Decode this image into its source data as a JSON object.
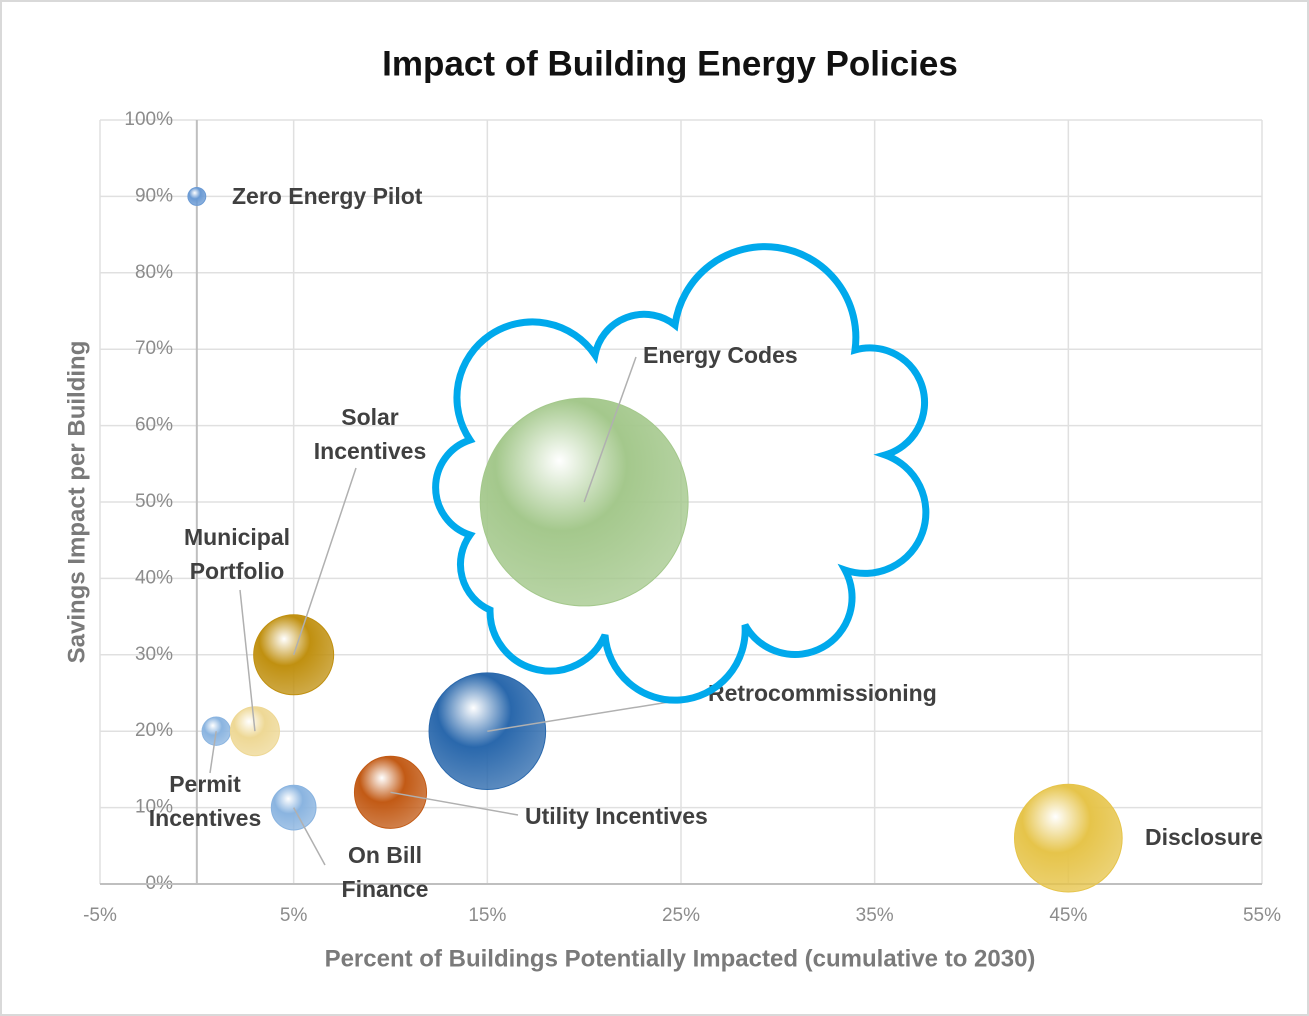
{
  "chart_data": {
    "type": "bubble",
    "title": "Impact of Building Energy Policies",
    "x_label": "Percent of Buildings Potentially Impacted (cumulative to 2030)",
    "y_label": "Savings Impact per Building",
    "xlim": [
      -5,
      55
    ],
    "ylim": [
      0,
      100
    ],
    "xticks": [
      {
        "value": -5,
        "label": "-5%"
      },
      {
        "value": 5,
        "label": "5%"
      },
      {
        "value": 15,
        "label": "15%"
      },
      {
        "value": 25,
        "label": "25%"
      },
      {
        "value": 35,
        "label": "35%"
      },
      {
        "value": 45,
        "label": "45%"
      },
      {
        "value": 55,
        "label": "55%"
      }
    ],
    "yticks": [
      {
        "value": 0,
        "label": "0%"
      },
      {
        "value": 10,
        "label": "10%"
      },
      {
        "value": 20,
        "label": "20%"
      },
      {
        "value": 30,
        "label": "30%"
      },
      {
        "value": 40,
        "label": "40%"
      },
      {
        "value": 50,
        "label": "50%"
      },
      {
        "value": 60,
        "label": "60%"
      },
      {
        "value": 70,
        "label": "70%"
      },
      {
        "value": 80,
        "label": "80%"
      },
      {
        "value": 90,
        "label": "90%"
      },
      {
        "value": 100,
        "label": "100%"
      }
    ],
    "grid": true,
    "points": [
      {
        "label": [
          "Zero Energy Pilot"
        ],
        "x": 0,
        "y": 90,
        "size": 0.8,
        "color": "#6a9ad4"
      },
      {
        "label": [
          "Permit",
          "Incentives"
        ],
        "x": 1,
        "y": 20,
        "size": 2,
        "color": "#8ab4e0"
      },
      {
        "label": [
          "Municipal",
          "Portfolio"
        ],
        "x": 3,
        "y": 20,
        "size": 6,
        "color": "#eed895"
      },
      {
        "label": [
          "Solar",
          "Incentives"
        ],
        "x": 5,
        "y": 30,
        "size": 16,
        "color": "#c09010"
      },
      {
        "label": [
          "On Bill",
          "Finance"
        ],
        "x": 5,
        "y": 10,
        "size": 5,
        "color": "#8ab4e0"
      },
      {
        "label": [
          "Utility Incentives"
        ],
        "x": 10,
        "y": 12,
        "size": 13,
        "color": "#c25a15"
      },
      {
        "label": [
          "Retrocommissioning"
        ],
        "x": 15,
        "y": 20,
        "size": 34,
        "color": "#2a68ac"
      },
      {
        "label": [
          "Energy Codes"
        ],
        "x": 20,
        "y": 50,
        "size": 108,
        "color": "#a4c88c"
      },
      {
        "label": [
          "Disclosure"
        ],
        "x": 45,
        "y": 6,
        "size": 29,
        "color": "#e6c44a"
      }
    ]
  }
}
